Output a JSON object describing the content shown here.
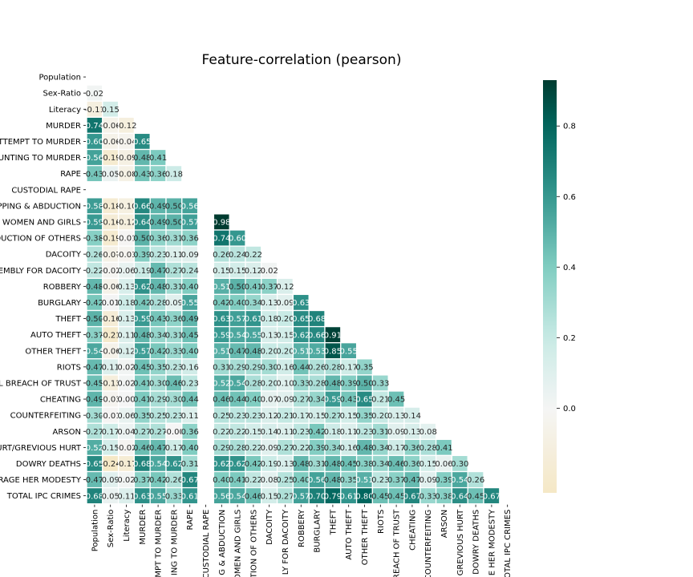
{
  "chart_data": {
    "type": "heatmap",
    "title": "Feature-correlation (pearson)",
    "mask": "upper-triangle",
    "labels": [
      "Population",
      "Sex-Ratio",
      "Literacy",
      "MURDER",
      "ATTEMPT TO MURDER",
      "CULPABLE HOMICIDE NOT AMOUNTING TO MURDER",
      "RAPE",
      "CUSTODIAL RAPE",
      "KIDNAPPING & ABDUCTION",
      "KIDNAPPING AND ABDUCTION OF WOMEN AND GIRLS",
      "KIDNAPPING AND ABDUCTION OF OTHERS",
      "DACOITY",
      "PREPARATION AND ASSEMBLY FOR DACOITY",
      "ROBBERY",
      "BURGLARY",
      "THEFT",
      "AUTO THEFT",
      "OTHER THEFT",
      "RIOTS",
      "CRIMINAL BREACH OF TRUST",
      "CHEATING",
      "COUNTERFEITING",
      "ARSON",
      "HURT/GREVIOUS HURT",
      "DOWRY DEATHS",
      "ASSAULT ON WOMEN WITH INTENT TO OUTRAGE HER MODESTY",
      "TOTAL IPC CRIMES"
    ],
    "y_tick_labels": [
      "Population",
      "Sex-Ratio",
      "Literacy",
      "MURDER",
      "TTEMPT TO MURDER",
      "UNTING TO MURDER",
      "RAPE",
      "CUSTODIAL RAPE",
      "PPING & ABDUCTION",
      "WOMEN AND GIRLS",
      "DUCTION OF OTHERS",
      "DACOITY",
      "EMBLY FOR DACOITY",
      "ROBBERY",
      "BURGLARY",
      "THEFT",
      "AUTO THEFT",
      "OTHER THEFT",
      "RIOTS",
      "L BREACH OF TRUST",
      "CHEATING",
      "COUNTERFEITING",
      "ARSON",
      "URT/GREVIOUS HURT",
      "DOWRY DEATHS",
      "RAGE HER MODESTY",
      "TOTAL IPC CRIMES"
    ],
    "x_tick_labels": [
      "Population",
      "Sex-Ratio",
      "Literacy",
      "MURDER",
      "MPT TO MURDER",
      "ING TO MURDER",
      "RAPE",
      "CUSTODIAL RAPE",
      "G & ABDUCTION",
      "OMEN AND GIRLS",
      "TION OF OTHERS",
      "DACOITY",
      "LY FOR DACOITY",
      "ROBBERY",
      "BURGLARY",
      "THEFT",
      "AUTO THEFT",
      "OTHER THEFT",
      "RIOTS",
      "BREACH OF TRUST",
      "CHEATING",
      "COUNTERFEITING",
      "ARSON",
      "GREVIOUS HURT",
      "DOWRY DEATHS",
      "E HER MODESTY",
      "OTAL IPC CRIMES"
    ],
    "matrix": [
      [],
      [
        0.02
      ],
      [
        -0.11,
        0.15
      ],
      [
        0.74,
        -0.06,
        -0.12
      ],
      [
        0.6,
        -0.06,
        -0.04,
        0.65
      ],
      [
        0.56,
        -0.19,
        -0.09,
        0.48,
        0.41
      ],
      [
        0.43,
        0.05,
        -0.08,
        0.43,
        0.36,
        0.18
      ],
      [
        null,
        null,
        null,
        null,
        null,
        null,
        null
      ],
      [
        0.58,
        -0.18,
        -0.1,
        0.66,
        0.49,
        0.5,
        0.56,
        null
      ],
      [
        0.59,
        -0.16,
        -0.12,
        0.64,
        0.49,
        0.5,
        0.57,
        null,
        0.98
      ],
      [
        0.38,
        -0.19,
        -0.01,
        0.5,
        0.36,
        0.31,
        0.36,
        null,
        0.74,
        0.6
      ],
      [
        0.26,
        -0.07,
        -0.03,
        0.39,
        0.23,
        0.11,
        0.09,
        null,
        0.26,
        0.24,
        0.22
      ],
      [
        0.22,
        -0.02,
        0.06,
        0.19,
        0.47,
        0.27,
        0.24,
        null,
        0.15,
        0.15,
        0.12,
        0.02
      ],
      [
        0.48,
        -0.06,
        0.13,
        0.62,
        0.48,
        0.31,
        0.4,
        null,
        0.51,
        0.5,
        0.41,
        0.37,
        0.12
      ],
      [
        0.42,
        0.01,
        0.18,
        0.42,
        0.28,
        0.09,
        0.55,
        null,
        0.42,
        0.4,
        0.34,
        0.13,
        0.09,
        0.63
      ],
      [
        0.5,
        -0.16,
        0.13,
        0.59,
        0.43,
        0.36,
        0.49,
        null,
        0.63,
        0.57,
        0.61,
        0.18,
        0.2,
        0.65,
        0.68
      ],
      [
        0.37,
        -0.21,
        0.11,
        0.48,
        0.34,
        0.31,
        0.45,
        null,
        0.59,
        0.54,
        0.55,
        0.13,
        0.15,
        0.62,
        0.66,
        0.91
      ],
      [
        0.54,
        -0.06,
        0.12,
        0.57,
        0.42,
        0.33,
        0.4,
        null,
        0.51,
        0.47,
        0.48,
        0.2,
        0.2,
        0.51,
        0.53,
        0.85,
        0.55
      ],
      [
        0.47,
        0.11,
        0.02,
        0.45,
        0.35,
        0.23,
        0.16,
        null,
        0.31,
        0.29,
        0.29,
        0.3,
        0.16,
        0.44,
        0.26,
        0.28,
        0.17,
        0.35
      ],
      [
        0.45,
        -0.13,
        0.02,
        0.41,
        0.3,
        0.46,
        0.23,
        null,
        0.52,
        0.54,
        0.28,
        0.2,
        0.1,
        0.33,
        0.28,
        0.48,
        0.39,
        0.5,
        0.33
      ],
      [
        0.49,
        -0.03,
        0.0,
        0.41,
        0.29,
        0.3,
        0.44,
        null,
        0.46,
        0.44,
        0.4,
        0.07,
        0.09,
        0.27,
        0.34,
        0.59,
        0.43,
        0.65,
        0.21,
        0.45
      ],
      [
        0.3,
        -0.01,
        0.06,
        0.35,
        0.25,
        0.23,
        0.11,
        null,
        0.25,
        0.23,
        0.23,
        0.12,
        0.21,
        0.17,
        0.15,
        0.27,
        0.15,
        0.35,
        0.2,
        0.13,
        0.14
      ],
      [
        0.27,
        0.17,
        0.04,
        0.27,
        0.27,
        -0.0,
        0.36,
        null,
        0.22,
        0.22,
        0.15,
        0.14,
        0.11,
        0.23,
        0.42,
        0.18,
        0.11,
        0.23,
        0.31,
        0.09,
        0.13,
        0.08
      ],
      [
        0.52,
        0.15,
        -0.02,
        0.46,
        0.47,
        0.17,
        0.4,
        null,
        0.29,
        0.28,
        0.22,
        0.09,
        0.27,
        0.22,
        0.39,
        0.34,
        0.16,
        0.48,
        0.34,
        0.17,
        0.36,
        0.28,
        0.41
      ],
      [
        0.65,
        -0.24,
        -0.17,
        0.68,
        0.54,
        0.62,
        0.31,
        null,
        0.62,
        0.62,
        0.42,
        0.19,
        0.13,
        0.48,
        0.31,
        0.48,
        0.45,
        0.38,
        0.34,
        0.46,
        0.36,
        0.15,
        0.06,
        0.3
      ],
      [
        0.47,
        0.09,
        0.02,
        0.37,
        0.42,
        0.26,
        0.67,
        null,
        0.4,
        0.41,
        0.22,
        0.08,
        0.25,
        0.4,
        0.56,
        0.48,
        0.35,
        0.51,
        0.23,
        0.37,
        0.47,
        0.09,
        0.39,
        0.54,
        0.26
      ],
      [
        0.68,
        0.05,
        0.11,
        0.63,
        0.55,
        0.33,
        0.61,
        null,
        0.56,
        0.54,
        0.46,
        0.15,
        0.27,
        0.57,
        0.7,
        0.79,
        0.61,
        0.8,
        0.45,
        0.45,
        0.67,
        0.33,
        0.38,
        0.64,
        0.45,
        0.67
      ]
    ],
    "colorbar": {
      "vmin": -0.24,
      "vmax": 0.93,
      "ticks": [
        0.0,
        0.2,
        0.4,
        0.6,
        0.8
      ]
    },
    "colormap": "BrBG",
    "colors": {
      "low": "#f5e6bf",
      "mid": "#f5f5f5",
      "high": "#003c30",
      "grid": "#ffffff"
    }
  }
}
